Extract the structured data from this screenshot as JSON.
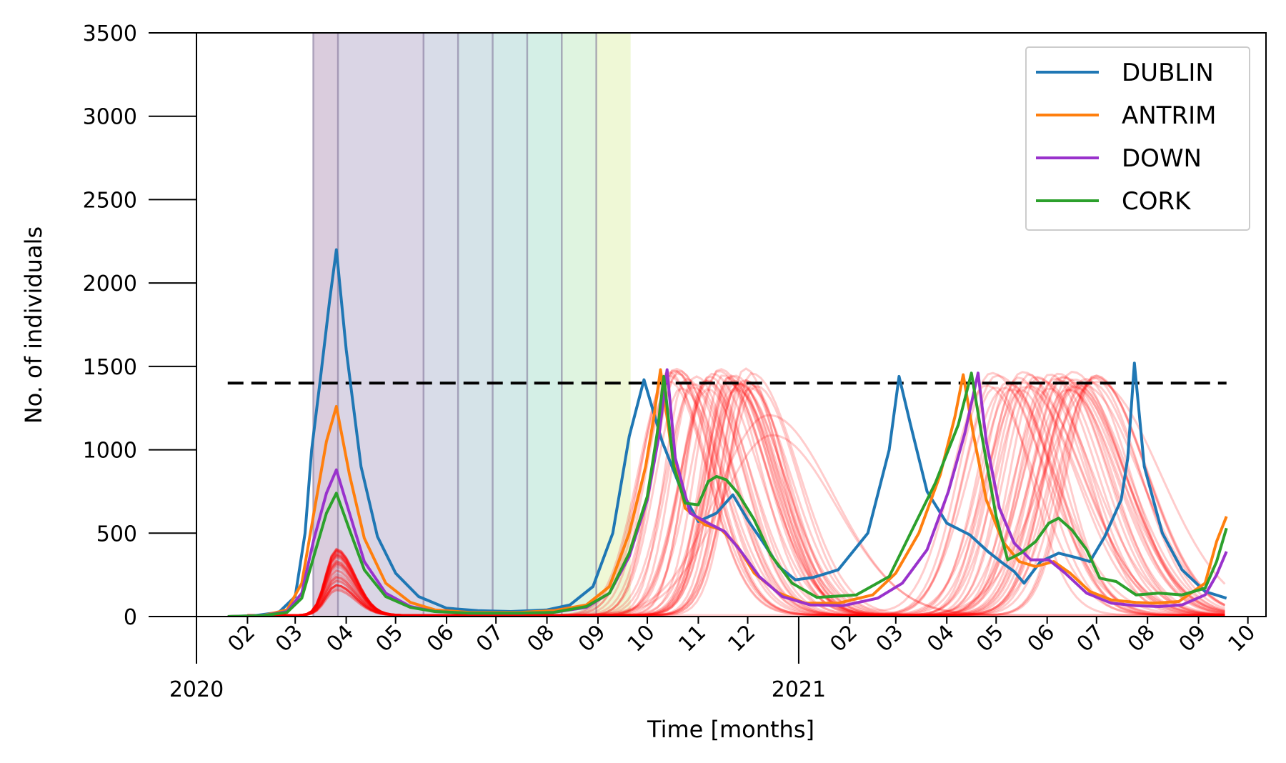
{
  "chart_data": {
    "type": "line",
    "xlabel": "Time [months]",
    "ylabel": "No. of individuals",
    "x_range": [
      "2020-01-01",
      "2021-10-12"
    ],
    "ylim": [
      0,
      3500
    ],
    "yticks": [
      0,
      500,
      1000,
      1500,
      2000,
      2500,
      3000,
      3500
    ],
    "xticks": [
      {
        "date": "2020-01-01",
        "label": "2020",
        "major": true
      },
      {
        "date": "2020-02-01",
        "label": "02"
      },
      {
        "date": "2020-03-01",
        "label": "03"
      },
      {
        "date": "2020-04-01",
        "label": "04"
      },
      {
        "date": "2020-05-01",
        "label": "05"
      },
      {
        "date": "2020-06-01",
        "label": "06"
      },
      {
        "date": "2020-07-01",
        "label": "07"
      },
      {
        "date": "2020-08-01",
        "label": "08"
      },
      {
        "date": "2020-09-01",
        "label": "09"
      },
      {
        "date": "2020-10-01",
        "label": "10"
      },
      {
        "date": "2020-11-01",
        "label": "11"
      },
      {
        "date": "2020-12-01",
        "label": "12"
      },
      {
        "date": "2021-01-01",
        "label": "2021",
        "major": true
      },
      {
        "date": "2021-02-01",
        "label": "02"
      },
      {
        "date": "2021-03-01",
        "label": "03"
      },
      {
        "date": "2021-04-01",
        "label": "04"
      },
      {
        "date": "2021-05-01",
        "label": "05"
      },
      {
        "date": "2021-06-01",
        "label": "06"
      },
      {
        "date": "2021-07-01",
        "label": "07"
      },
      {
        "date": "2021-08-01",
        "label": "08"
      },
      {
        "date": "2021-09-01",
        "label": "09"
      },
      {
        "date": "2021-10-01",
        "label": "10"
      }
    ],
    "grid": false,
    "legend_position": "top-right",
    "threshold": {
      "y": 1400,
      "x_start": "2020-01-20",
      "x_end": "2021-09-18",
      "color": "#000000",
      "style": "dashed"
    },
    "phases": [
      {
        "start": "2020-03-12",
        "end": "2020-03-27",
        "color": "#440154"
      },
      {
        "start": "2020-03-27",
        "end": "2020-05-18",
        "color": "#472d7b"
      },
      {
        "start": "2020-05-18",
        "end": "2020-06-08",
        "color": "#3b528b"
      },
      {
        "start": "2020-06-08",
        "end": "2020-06-29",
        "color": "#2c728e"
      },
      {
        "start": "2020-06-29",
        "end": "2020-07-20",
        "color": "#21918c"
      },
      {
        "start": "2020-07-20",
        "end": "2020-08-10",
        "color": "#28ae80"
      },
      {
        "start": "2020-08-10",
        "end": "2020-08-31",
        "color": "#5ec962"
      },
      {
        "start": "2020-08-31",
        "end": "2020-08-31",
        "color": "#addc30"
      }
    ],
    "phase_bounds": [
      "2020-03-12",
      "2020-03-27",
      "2020-05-18",
      "2020-06-08",
      "2020-06-29",
      "2020-07-20",
      "2020-08-10",
      "2020-08-31"
    ],
    "series": [
      {
        "name": "DUBLIN",
        "color": "#1f77b4",
        "points": [
          [
            "2020-01-20",
            0
          ],
          [
            "2020-02-05",
            5
          ],
          [
            "2020-02-20",
            25
          ],
          [
            "2020-03-01",
            120
          ],
          [
            "2020-03-07",
            500
          ],
          [
            "2020-03-11",
            1000
          ],
          [
            "2020-03-16",
            1400
          ],
          [
            "2020-03-22",
            1900
          ],
          [
            "2020-03-26",
            2200
          ],
          [
            "2020-04-01",
            1600
          ],
          [
            "2020-04-10",
            900
          ],
          [
            "2020-04-20",
            480
          ],
          [
            "2020-05-01",
            260
          ],
          [
            "2020-05-15",
            120
          ],
          [
            "2020-06-01",
            50
          ],
          [
            "2020-06-20",
            35
          ],
          [
            "2020-07-10",
            30
          ],
          [
            "2020-08-01",
            40
          ],
          [
            "2020-08-15",
            70
          ],
          [
            "2020-08-29",
            180
          ],
          [
            "2020-09-10",
            500
          ],
          [
            "2020-09-20",
            1080
          ],
          [
            "2020-09-29",
            1420
          ],
          [
            "2020-10-10",
            1050
          ],
          [
            "2020-10-22",
            750
          ],
          [
            "2020-11-01",
            570
          ],
          [
            "2020-11-12",
            620
          ],
          [
            "2020-11-22",
            730
          ],
          [
            "2020-12-01",
            580
          ],
          [
            "2020-12-10",
            450
          ],
          [
            "2020-12-20",
            300
          ],
          [
            "2020-12-30",
            220
          ],
          [
            "2021-01-10",
            235
          ],
          [
            "2021-01-25",
            280
          ],
          [
            "2021-02-12",
            500
          ],
          [
            "2021-02-25",
            1000
          ],
          [
            "2021-03-03",
            1440
          ],
          [
            "2021-03-10",
            1150
          ],
          [
            "2021-03-20",
            750
          ],
          [
            "2021-04-01",
            560
          ],
          [
            "2021-04-15",
            490
          ],
          [
            "2021-04-26",
            390
          ],
          [
            "2021-05-05",
            320
          ],
          [
            "2021-05-12",
            270
          ],
          [
            "2021-05-18",
            200
          ],
          [
            "2021-05-28",
            330
          ],
          [
            "2021-06-08",
            380
          ],
          [
            "2021-06-18",
            355
          ],
          [
            "2021-06-27",
            330
          ],
          [
            "2021-07-06",
            480
          ],
          [
            "2021-07-16",
            700
          ],
          [
            "2021-07-20",
            950
          ],
          [
            "2021-07-24",
            1520
          ],
          [
            "2021-07-30",
            900
          ],
          [
            "2021-08-10",
            500
          ],
          [
            "2021-08-22",
            280
          ],
          [
            "2021-09-05",
            150
          ],
          [
            "2021-09-18",
            110
          ]
        ]
      },
      {
        "name": "ANTRIM",
        "color": "#ff7f0e",
        "points": [
          [
            "2020-01-20",
            0
          ],
          [
            "2020-02-10",
            5
          ],
          [
            "2020-02-25",
            40
          ],
          [
            "2020-03-05",
            200
          ],
          [
            "2020-03-12",
            600
          ],
          [
            "2020-03-20",
            1050
          ],
          [
            "2020-03-26",
            1260
          ],
          [
            "2020-04-03",
            850
          ],
          [
            "2020-04-12",
            470
          ],
          [
            "2020-04-25",
            200
          ],
          [
            "2020-05-10",
            85
          ],
          [
            "2020-05-25",
            40
          ],
          [
            "2020-06-15",
            25
          ],
          [
            "2020-07-15",
            25
          ],
          [
            "2020-08-05",
            35
          ],
          [
            "2020-08-25",
            70
          ],
          [
            "2020-09-08",
            180
          ],
          [
            "2020-09-20",
            500
          ],
          [
            "2020-09-30",
            900
          ],
          [
            "2020-10-05",
            1200
          ],
          [
            "2020-10-09",
            1480
          ],
          [
            "2020-10-15",
            1050
          ],
          [
            "2020-10-24",
            650
          ],
          [
            "2020-11-05",
            550
          ],
          [
            "2020-11-15",
            520
          ],
          [
            "2020-11-25",
            420
          ],
          [
            "2020-12-05",
            260
          ],
          [
            "2020-12-20",
            140
          ],
          [
            "2021-01-05",
            80
          ],
          [
            "2021-01-25",
            80
          ],
          [
            "2021-02-15",
            130
          ],
          [
            "2021-03-01",
            260
          ],
          [
            "2021-03-15",
            500
          ],
          [
            "2021-03-28",
            850
          ],
          [
            "2021-04-06",
            1200
          ],
          [
            "2021-04-11",
            1450
          ],
          [
            "2021-04-17",
            1100
          ],
          [
            "2021-04-25",
            700
          ],
          [
            "2021-05-05",
            450
          ],
          [
            "2021-05-15",
            330
          ],
          [
            "2021-05-25",
            300
          ],
          [
            "2021-06-05",
            330
          ],
          [
            "2021-06-15",
            260
          ],
          [
            "2021-06-27",
            150
          ],
          [
            "2021-07-10",
            100
          ],
          [
            "2021-07-25",
            85
          ],
          [
            "2021-08-05",
            80
          ],
          [
            "2021-08-20",
            90
          ],
          [
            "2021-09-05",
            200
          ],
          [
            "2021-09-12",
            450
          ],
          [
            "2021-09-18",
            600
          ]
        ]
      },
      {
        "name": "DOWN",
        "color": "#9932cc",
        "points": [
          [
            "2020-01-20",
            0
          ],
          [
            "2020-02-10",
            5
          ],
          [
            "2020-02-25",
            30
          ],
          [
            "2020-03-05",
            140
          ],
          [
            "2020-03-12",
            450
          ],
          [
            "2020-03-20",
            740
          ],
          [
            "2020-03-26",
            880
          ],
          [
            "2020-04-03",
            620
          ],
          [
            "2020-04-12",
            330
          ],
          [
            "2020-04-25",
            140
          ],
          [
            "2020-05-10",
            60
          ],
          [
            "2020-05-25",
            30
          ],
          [
            "2020-06-15",
            20
          ],
          [
            "2020-07-15",
            20
          ],
          [
            "2020-08-05",
            25
          ],
          [
            "2020-08-25",
            55
          ],
          [
            "2020-09-08",
            140
          ],
          [
            "2020-09-20",
            360
          ],
          [
            "2020-10-01",
            700
          ],
          [
            "2020-10-08",
            1080
          ],
          [
            "2020-10-13",
            1480
          ],
          [
            "2020-10-18",
            950
          ],
          [
            "2020-10-27",
            620
          ],
          [
            "2020-11-07",
            560
          ],
          [
            "2020-11-17",
            510
          ],
          [
            "2020-11-27",
            390
          ],
          [
            "2020-12-08",
            240
          ],
          [
            "2020-12-22",
            120
          ],
          [
            "2021-01-08",
            70
          ],
          [
            "2021-01-28",
            65
          ],
          [
            "2021-02-18",
            110
          ],
          [
            "2021-03-05",
            200
          ],
          [
            "2021-03-20",
            400
          ],
          [
            "2021-04-02",
            750
          ],
          [
            "2021-04-12",
            1100
          ],
          [
            "2021-04-20",
            1460
          ],
          [
            "2021-04-25",
            1050
          ],
          [
            "2021-05-03",
            650
          ],
          [
            "2021-05-12",
            440
          ],
          [
            "2021-05-22",
            340
          ],
          [
            "2021-06-02",
            340
          ],
          [
            "2021-06-12",
            260
          ],
          [
            "2021-06-25",
            140
          ],
          [
            "2021-07-10",
            80
          ],
          [
            "2021-07-25",
            65
          ],
          [
            "2021-08-08",
            60
          ],
          [
            "2021-08-22",
            70
          ],
          [
            "2021-09-05",
            130
          ],
          [
            "2021-09-12",
            250
          ],
          [
            "2021-09-18",
            390
          ]
        ]
      },
      {
        "name": "CORK",
        "color": "#2ca02c",
        "points": [
          [
            "2020-01-20",
            0
          ],
          [
            "2020-02-10",
            5
          ],
          [
            "2020-02-25",
            25
          ],
          [
            "2020-03-05",
            110
          ],
          [
            "2020-03-12",
            350
          ],
          [
            "2020-03-20",
            620
          ],
          [
            "2020-03-26",
            740
          ],
          [
            "2020-04-03",
            520
          ],
          [
            "2020-04-12",
            280
          ],
          [
            "2020-04-25",
            120
          ],
          [
            "2020-05-10",
            55
          ],
          [
            "2020-05-25",
            30
          ],
          [
            "2020-06-15",
            20
          ],
          [
            "2020-07-15",
            20
          ],
          [
            "2020-08-05",
            25
          ],
          [
            "2020-08-25",
            60
          ],
          [
            "2020-09-08",
            140
          ],
          [
            "2020-09-20",
            380
          ],
          [
            "2020-10-01",
            720
          ],
          [
            "2020-10-07",
            1100
          ],
          [
            "2020-10-11",
            1440
          ],
          [
            "2020-10-17",
            900
          ],
          [
            "2020-10-24",
            680
          ],
          [
            "2020-11-01",
            670
          ],
          [
            "2020-11-07",
            810
          ],
          [
            "2020-11-12",
            840
          ],
          [
            "2020-11-18",
            820
          ],
          [
            "2020-11-25",
            740
          ],
          [
            "2020-12-05",
            580
          ],
          [
            "2020-12-15",
            370
          ],
          [
            "2020-12-28",
            200
          ],
          [
            "2021-01-12",
            115
          ],
          [
            "2021-02-05",
            130
          ],
          [
            "2021-02-25",
            240
          ],
          [
            "2021-03-10",
            500
          ],
          [
            "2021-03-25",
            800
          ],
          [
            "2021-04-08",
            1150
          ],
          [
            "2021-04-16",
            1460
          ],
          [
            "2021-04-22",
            1100
          ],
          [
            "2021-05-01",
            600
          ],
          [
            "2021-05-08",
            340
          ],
          [
            "2021-05-16",
            380
          ],
          [
            "2021-05-25",
            450
          ],
          [
            "2021-06-02",
            560
          ],
          [
            "2021-06-08",
            590
          ],
          [
            "2021-06-16",
            520
          ],
          [
            "2021-06-25",
            400
          ],
          [
            "2021-07-03",
            230
          ],
          [
            "2021-07-13",
            210
          ],
          [
            "2021-07-25",
            130
          ],
          [
            "2021-08-08",
            140
          ],
          [
            "2021-08-22",
            130
          ],
          [
            "2021-09-05",
            170
          ],
          [
            "2021-09-12",
            330
          ],
          [
            "2021-09-18",
            530
          ]
        ]
      }
    ],
    "background_runs": {
      "color": "#ff0000",
      "count": 40,
      "early_peak_date": "2020-03-26",
      "early_peak_range": [
        150,
        400
      ],
      "autumn_peaks": [
        "2020-10-12",
        "2020-12-12"
      ],
      "autumn_peak_range": [
        1350,
        1480
      ],
      "spring_peaks": [
        "2021-04-22",
        "2021-07-01"
      ],
      "spring_peak_range": [
        1350,
        1460
      ],
      "late_outliers": [
        {
          "peak_date": "2020-12-14",
          "peak": 1200
        },
        {
          "peak_date": "2020-12-16",
          "peak": 1080
        },
        {
          "peak_date": "2021-07-01",
          "peak": 1400
        }
      ]
    }
  }
}
